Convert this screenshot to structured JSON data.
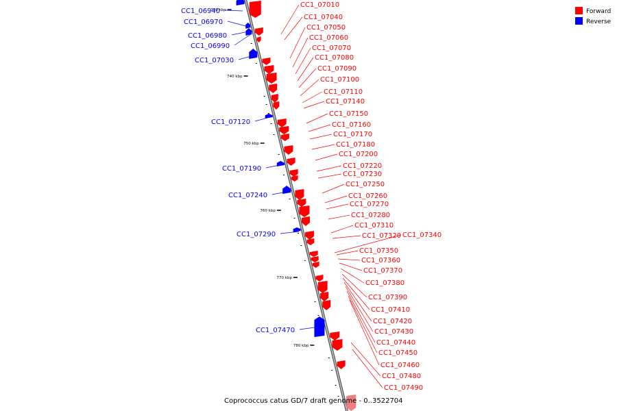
{
  "colors": {
    "forward": "#ff0000",
    "reverse": "#0000ff",
    "backbone": "#888888",
    "faded": "#f08080"
  },
  "legend": [
    {
      "label": "Forward",
      "color": "#ff0000"
    },
    {
      "label": "Reverse",
      "color": "#0000ff"
    }
  ],
  "caption": "Coprococcus catus GD/7 draft genome - 0..3522704",
  "ticks": [
    "730 kbp",
    "740 kbp",
    "750 kbp",
    "760 kbp",
    "770 kbp",
    "780 kbp"
  ],
  "genes_reverse": [
    "CC1_06940",
    "CC1_06970",
    "CC1_06980",
    "CC1_06990",
    "CC1_07030",
    "CC1_07120",
    "CC1_07190",
    "CC1_07240",
    "CC1_07290",
    "CC1_07470"
  ],
  "genes_forward": [
    "CC1_07010",
    "CC1_07040",
    "CC1_07050",
    "CC1_07060",
    "CC1_07070",
    "CC1_07080",
    "CC1_07090",
    "CC1_07100",
    "CC1_07110",
    "CC1_07140",
    "CC1_07150",
    "CC1_07160",
    "CC1_07170",
    "CC1_07180",
    "CC1_07200",
    "CC1_07220",
    "CC1_07230",
    "CC1_07250",
    "CC1_07260",
    "CC1_07270",
    "CC1_07280",
    "CC1_07310",
    "CC1_07320",
    "CC1_07340",
    "CC1_07350",
    "CC1_07360",
    "CC1_07370",
    "CC1_07380",
    "CC1_07390",
    "CC1_07410",
    "CC1_07420",
    "CC1_07430",
    "CC1_07440",
    "CC1_07450",
    "CC1_07460",
    "CC1_07480",
    "CC1_07490"
  ]
}
